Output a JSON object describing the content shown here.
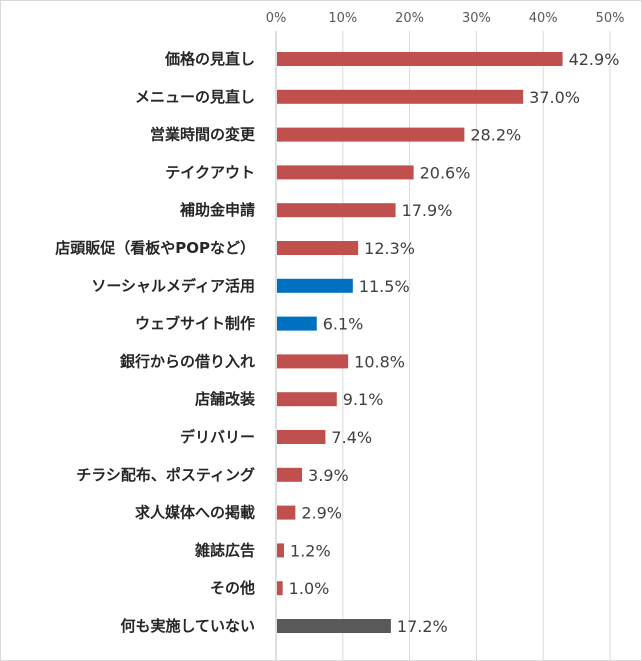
{
  "chart_data": {
    "type": "bar",
    "orientation": "horizontal",
    "title": "",
    "xlabel": "",
    "ylabel": "",
    "xlim": [
      0,
      50
    ],
    "ticks": [
      0,
      10,
      20,
      30,
      40,
      50
    ],
    "tick_labels": [
      "0%",
      "10%",
      "20%",
      "30%",
      "40%",
      "50%"
    ],
    "tick_position": "top",
    "grid": true,
    "legend": "none",
    "colors": {
      "default": "#c0504d",
      "highlight": "#0070c0",
      "none": "#595959"
    },
    "categories": [
      "価格の見直し",
      "メニューの見直し",
      "営業時間の変更",
      "テイクアウト",
      "補助金申請",
      "店頭販促（看板やPOPなど）",
      "ソーシャルメディア活用",
      "ウェブサイト制作",
      "銀行からの借り入れ",
      "店舗改装",
      "デリバリー",
      "チラシ配布、ポスティング",
      "求人媒体への掲載",
      "雑誌広告",
      "その他",
      "何も実施していない"
    ],
    "values": [
      42.9,
      37.0,
      28.2,
      20.6,
      17.9,
      12.3,
      11.5,
      6.1,
      10.8,
      9.1,
      7.4,
      3.9,
      2.9,
      1.2,
      1.0,
      17.2
    ],
    "value_labels": [
      "42.9%",
      "37.0%",
      "28.2%",
      "20.6%",
      "17.9%",
      "12.3%",
      "11.5%",
      "6.1%",
      "10.8%",
      "9.1%",
      "7.4%",
      "3.9%",
      "2.9%",
      "1.2%",
      "1.0%",
      "17.2%"
    ],
    "bar_color_keys": [
      "default",
      "default",
      "default",
      "default",
      "default",
      "default",
      "highlight",
      "highlight",
      "default",
      "default",
      "default",
      "default",
      "default",
      "default",
      "default",
      "none"
    ]
  }
}
